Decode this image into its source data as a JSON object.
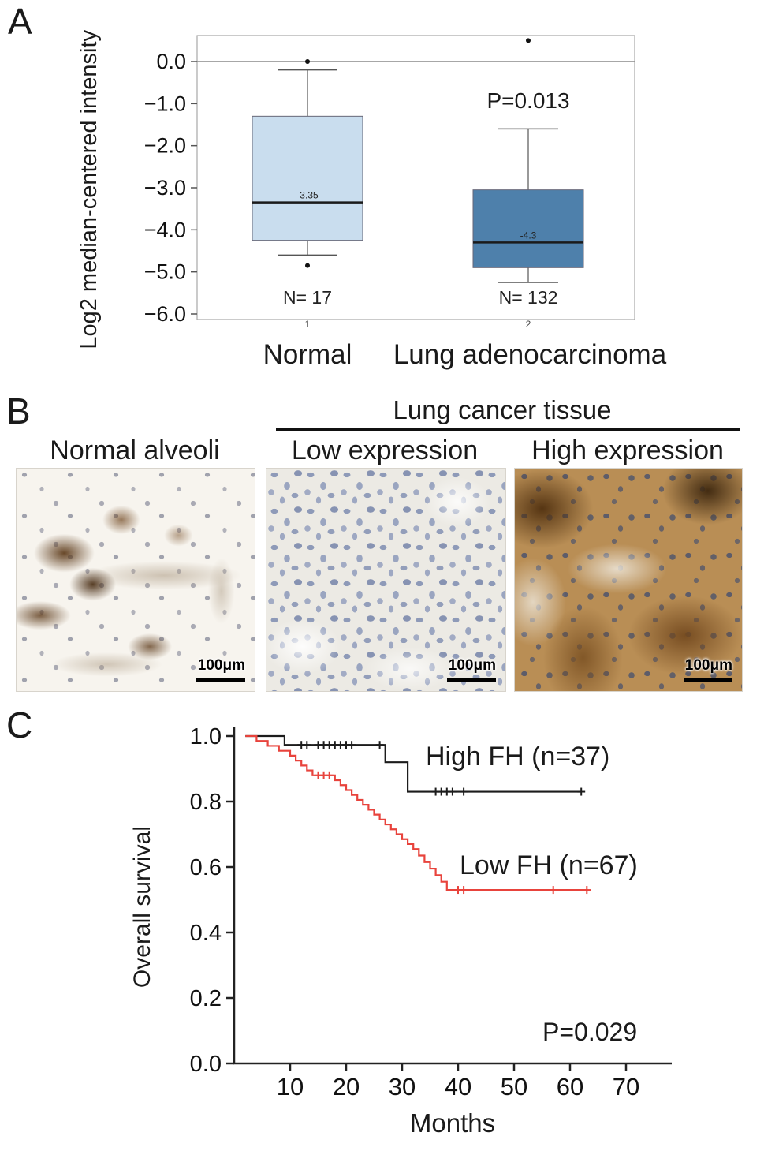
{
  "panel_a": {
    "label": "A",
    "ylabel": "Log2 median-centered intensity",
    "pvalue": "P=0.013",
    "categories": [
      "Normal",
      "Lung adenocarcinoma"
    ]
  },
  "panel_b": {
    "label": "B",
    "group_header": "Lung cancer tissue",
    "columns": [
      {
        "title": "Normal alveoli",
        "scale_label": "100μm"
      },
      {
        "title": "Low expression",
        "scale_label": "100μm"
      },
      {
        "title": "High expression",
        "scale_label": "100μm"
      }
    ]
  },
  "panel_c": {
    "label": "C",
    "ylabel": "Overall survival",
    "xlabel": "Months",
    "pvalue": "P=0.029",
    "high_label": "High FH (n=37)",
    "low_label": "Low FH (n=67)"
  },
  "chart_data": [
    {
      "type": "box",
      "panel": "A",
      "ylabel": "Log2 median-centered intensity",
      "ylim": [
        -6.2,
        0.65
      ],
      "yticks": [
        0,
        -1,
        -2,
        -3,
        -4,
        -5,
        -6
      ],
      "ytick_labels": [
        "0.0",
        "−1.0",
        "−2.0",
        "−3.0",
        "−4.0",
        "−5.0",
        "−6.0"
      ],
      "categories": [
        "Normal",
        "Lung adenocarcinoma"
      ],
      "annotation": "P=0.013",
      "groups": [
        {
          "name": "Normal",
          "n": 17,
          "n_label": "N= 17",
          "axis_number": "1",
          "whisker_low": -4.6,
          "q1": -4.25,
          "median": -3.35,
          "q3": -1.3,
          "whisker_high": -0.2,
          "median_label": "-3.35",
          "outliers": [
            0.0,
            -4.85
          ],
          "fill": "#c9ddee"
        },
        {
          "name": "Lung adenocarcinoma",
          "n": 132,
          "n_label": "N= 132",
          "axis_number": "2",
          "whisker_low": -5.25,
          "q1": -4.9,
          "median": -4.3,
          "q3": -3.05,
          "whisker_high": -1.6,
          "median_label": "-4.3",
          "outliers": [
            0.5
          ],
          "fill": "#4e80ab"
        }
      ]
    },
    {
      "type": "line",
      "subtype": "kaplan-meier",
      "panel": "C",
      "xlabel": "Months",
      "ylabel": "Overall survival",
      "xlim": [
        0,
        77
      ],
      "ylim": [
        0,
        1.0
      ],
      "xticks": [
        10,
        20,
        30,
        40,
        50,
        60,
        70
      ],
      "yticks": [
        0,
        0.2,
        0.4,
        0.6,
        0.8,
        1.0
      ],
      "ytick_labels": [
        "0.0",
        "0.2",
        "0.4",
        "0.6",
        "0.8",
        "1.0"
      ],
      "p_value": "P=0.029",
      "series": [
        {
          "name": "High FH (n=37)",
          "color": "#1c1c1c",
          "steps": [
            [
              9,
              0.973
            ],
            [
              27,
              0.92
            ],
            [
              31,
              0.83
            ],
            [
              62,
              0.83
            ]
          ],
          "censors": [
            [
              12,
              0.973
            ],
            [
              13,
              0.973
            ],
            [
              15,
              0.973
            ],
            [
              16,
              0.973
            ],
            [
              17,
              0.973
            ],
            [
              18,
              0.973
            ],
            [
              19,
              0.973
            ],
            [
              20,
              0.973
            ],
            [
              21,
              0.973
            ],
            [
              26,
              0.973
            ],
            [
              36,
              0.83
            ],
            [
              37,
              0.83
            ],
            [
              38,
              0.83
            ],
            [
              39,
              0.83
            ],
            [
              41,
              0.83
            ],
            [
              62,
              0.83
            ]
          ]
        },
        {
          "name": "Low FH (n=67)",
          "color": "#e8433c",
          "steps": [
            [
              4,
              0.985
            ],
            [
              6,
              0.97
            ],
            [
              8,
              0.955
            ],
            [
              10,
              0.94
            ],
            [
              11,
              0.925
            ],
            [
              12,
              0.91
            ],
            [
              13,
              0.895
            ],
            [
              14,
              0.88
            ],
            [
              18,
              0.865
            ],
            [
              19,
              0.85
            ],
            [
              20,
              0.835
            ],
            [
              21,
              0.82
            ],
            [
              22,
              0.805
            ],
            [
              23,
              0.79
            ],
            [
              24,
              0.775
            ],
            [
              25,
              0.76
            ],
            [
              26,
              0.745
            ],
            [
              27,
              0.73
            ],
            [
              28,
              0.715
            ],
            [
              29,
              0.7
            ],
            [
              30,
              0.685
            ],
            [
              31,
              0.67
            ],
            [
              32,
              0.655
            ],
            [
              33,
              0.635
            ],
            [
              34,
              0.615
            ],
            [
              35,
              0.595
            ],
            [
              36,
              0.575
            ],
            [
              37,
              0.555
            ],
            [
              38,
              0.53
            ],
            [
              63,
              0.53
            ]
          ],
          "censors": [
            [
              15,
              0.88
            ],
            [
              16,
              0.88
            ],
            [
              17,
              0.88
            ],
            [
              40,
              0.53
            ],
            [
              41,
              0.53
            ],
            [
              57,
              0.53
            ],
            [
              63,
              0.53
            ]
          ]
        }
      ]
    }
  ]
}
